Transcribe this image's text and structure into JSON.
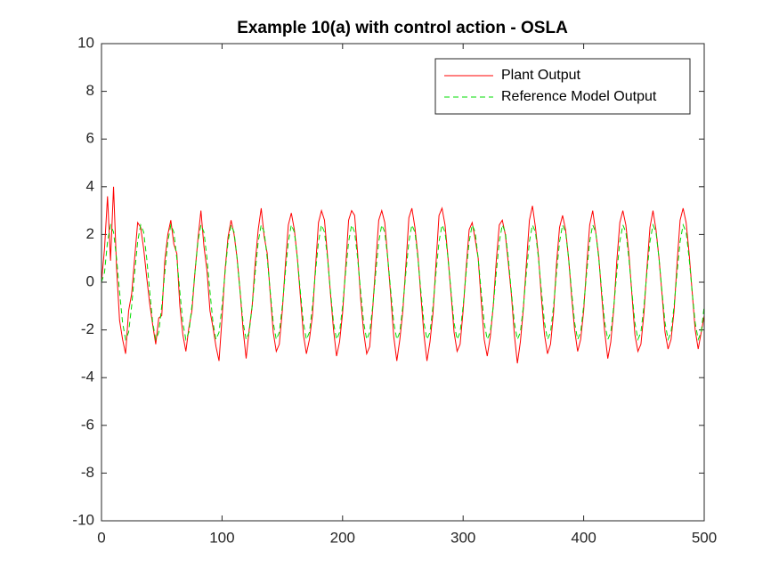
{
  "chart_data": {
    "type": "line",
    "title": "Example 10(a) with control action - OSLA",
    "x": [
      0,
      2.5,
      5,
      7.5,
      10,
      12.5,
      15,
      17.5,
      20,
      22.5,
      25,
      27.5,
      30,
      32.5,
      35,
      37.5,
      40,
      42.5,
      45,
      47.5,
      50,
      52.5,
      55,
      57.5,
      60,
      62.5,
      65,
      67.5,
      70,
      72.5,
      75,
      77.5,
      80,
      82.5,
      85,
      87.5,
      90,
      92.5,
      95,
      97.5,
      100,
      102.5,
      105,
      107.5,
      110,
      112.5,
      115,
      117.5,
      120,
      122.5,
      125,
      127.5,
      130,
      132.5,
      135,
      137.5,
      140,
      142.5,
      145,
      147.5,
      150,
      152.5,
      155,
      157.5,
      160,
      162.5,
      165,
      167.5,
      170,
      172.5,
      175,
      177.5,
      180,
      182.5,
      185,
      187.5,
      190,
      192.5,
      195,
      197.5,
      200,
      202.5,
      205,
      207.5,
      210,
      212.5,
      215,
      217.5,
      220,
      222.5,
      225,
      227.5,
      230,
      232.5,
      235,
      237.5,
      240,
      242.5,
      245,
      247.5,
      250,
      252.5,
      255,
      257.5,
      260,
      262.5,
      265,
      267.5,
      270,
      272.5,
      275,
      277.5,
      280,
      282.5,
      285,
      287.5,
      290,
      292.5,
      295,
      297.5,
      300,
      302.5,
      305,
      307.5,
      310,
      312.5,
      315,
      317.5,
      320,
      322.5,
      325,
      327.5,
      330,
      332.5,
      335,
      337.5,
      340,
      342.5,
      345,
      347.5,
      350,
      352.5,
      355,
      357.5,
      360,
      362.5,
      365,
      367.5,
      370,
      372.5,
      375,
      377.5,
      380,
      382.5,
      385,
      387.5,
      390,
      392.5,
      395,
      397.5,
      400,
      402.5,
      405,
      407.5,
      410,
      412.5,
      415,
      417.5,
      420,
      422.5,
      425,
      427.5,
      430,
      432.5,
      435,
      437.5,
      440,
      442.5,
      445,
      447.5,
      450,
      452.5,
      455,
      457.5,
      460,
      462.5,
      465,
      467.5,
      470,
      472.5,
      475,
      477.5,
      480,
      482.5,
      485,
      487.5,
      490,
      492.5,
      495,
      497.5,
      500
    ],
    "series": [
      {
        "name": "Plant Output",
        "color": "#ff0000",
        "line_style": "solid",
        "values": [
          0,
          1.4,
          3.6,
          0.9,
          4.0,
          0.6,
          -1.6,
          -2.4,
          -3.0,
          -1.2,
          -0.5,
          1.0,
          2.5,
          2.3,
          1.4,
          0.2,
          -0.9,
          -1.8,
          -2.6,
          -1.5,
          -1.4,
          0.9,
          2.0,
          2.6,
          1.6,
          1.2,
          -1.0,
          -2.2,
          -2.9,
          -1.9,
          -1.2,
          0.4,
          1.8,
          3.0,
          1.5,
          0.5,
          -1.2,
          -1.9,
          -2.7,
          -3.3,
          -1.5,
          0.5,
          1.9,
          2.6,
          2.0,
          1.0,
          -0.4,
          -2.0,
          -3.2,
          -2.0,
          -1.0,
          0.8,
          2.2,
          3.1,
          1.9,
          1.2,
          -0.5,
          -2.1,
          -2.9,
          -2.6,
          -1.2,
          0.7,
          2.4,
          2.9,
          2.2,
          1.0,
          -0.6,
          -2.2,
          -3.0,
          -2.4,
          -1.4,
          0.6,
          2.5,
          3.0,
          2.6,
          1.1,
          -0.5,
          -2.0,
          -3.1,
          -2.5,
          -1.3,
          0.6,
          2.6,
          3.0,
          2.8,
          1.2,
          -0.7,
          -2.1,
          -3.0,
          -2.7,
          -1.1,
          0.8,
          2.6,
          3.0,
          2.5,
          1.0,
          -0.6,
          -2.3,
          -3.3,
          -2.4,
          -1.2,
          0.7,
          2.7,
          3.1,
          2.3,
          1.1,
          -0.6,
          -2.2,
          -3.3,
          -2.5,
          -1.3,
          0.8,
          2.8,
          3.1,
          2.4,
          1.0,
          -0.5,
          -2.1,
          -2.9,
          -2.6,
          -1.2,
          0.6,
          2.2,
          2.5,
          1.8,
          1.0,
          -0.8,
          -2.4,
          -3.1,
          -2.3,
          -1.0,
          0.9,
          2.4,
          2.6,
          2.0,
          0.8,
          -0.5,
          -2.2,
          -3.4,
          -2.5,
          -1.1,
          0.8,
          2.6,
          3.2,
          2.3,
          1.1,
          -0.7,
          -2.2,
          -3.0,
          -2.6,
          -1.3,
          0.8,
          2.3,
          2.8,
          2.2,
          1.0,
          -0.6,
          -2.0,
          -2.9,
          -2.4,
          -1.2,
          0.7,
          2.4,
          3.0,
          2.1,
          1.1,
          -0.6,
          -2.1,
          -3.2,
          -2.5,
          -1.1,
          0.9,
          2.5,
          3.0,
          2.4,
          1.2,
          -0.5,
          -2.2,
          -2.9,
          -2.6,
          -1.3,
          0.6,
          2.3,
          3.0,
          2.2,
          1.0,
          -0.5,
          -2.1,
          -2.8,
          -2.4,
          -1.2,
          0.8,
          2.6,
          3.1,
          2.5,
          1.2,
          -0.4,
          -2.0,
          -2.8,
          -2.1,
          -1.4
        ]
      },
      {
        "name": "Reference Model Output",
        "color": "#00dd00",
        "line_style": "dashed",
        "values": [
          0,
          0.4,
          1.7,
          2.4,
          2.1,
          1.0,
          -0.4,
          -1.7,
          -2.4,
          -2.1,
          -1.0,
          0.4,
          1.7,
          2.4,
          2.1,
          1.0,
          -0.4,
          -1.7,
          -2.4,
          -2.1,
          -1.0,
          0.4,
          1.7,
          2.4,
          2.1,
          1.0,
          -0.4,
          -1.7,
          -2.4,
          -2.1,
          -1.0,
          0.4,
          1.7,
          2.4,
          2.1,
          1.0,
          -0.4,
          -1.7,
          -2.4,
          -2.1,
          -1.0,
          0.4,
          1.7,
          2.4,
          2.1,
          1.0,
          -0.4,
          -1.7,
          -2.4,
          -2.1,
          -1.0,
          0.4,
          1.7,
          2.4,
          2.1,
          1.0,
          -0.4,
          -1.7,
          -2.4,
          -2.1,
          -1.0,
          0.4,
          1.7,
          2.4,
          2.1,
          1.0,
          -0.4,
          -1.7,
          -2.4,
          -2.1,
          -1.0,
          0.4,
          1.7,
          2.4,
          2.1,
          1.0,
          -0.4,
          -1.7,
          -2.4,
          -2.1,
          -1.0,
          0.4,
          1.7,
          2.4,
          2.1,
          1.0,
          -0.4,
          -1.7,
          -2.4,
          -2.1,
          -1.0,
          0.4,
          1.7,
          2.4,
          2.1,
          1.0,
          -0.4,
          -1.7,
          -2.4,
          -2.1,
          -1.0,
          0.4,
          1.7,
          2.4,
          2.1,
          1.0,
          -0.4,
          -1.7,
          -2.4,
          -2.1,
          -1.0,
          0.4,
          1.7,
          2.4,
          2.1,
          1.0,
          -0.4,
          -1.7,
          -2.4,
          -2.1,
          -1.0,
          0.4,
          1.7,
          2.4,
          2.1,
          1.0,
          -0.4,
          -1.7,
          -2.4,
          -2.1,
          -1.0,
          0.4,
          1.7,
          2.4,
          2.1,
          1.0,
          -0.4,
          -1.7,
          -2.4,
          -2.1,
          -1.0,
          0.4,
          1.7,
          2.4,
          2.1,
          1.0,
          -0.4,
          -1.7,
          -2.4,
          -2.1,
          -1.0,
          0.4,
          1.7,
          2.4,
          2.1,
          1.0,
          -0.4,
          -1.7,
          -2.4,
          -2.1,
          -1.0,
          0.4,
          1.7,
          2.4,
          2.1,
          1.0,
          -0.4,
          -1.7,
          -2.4,
          -2.1,
          -1.0,
          0.4,
          1.7,
          2.4,
          2.1,
          1.0,
          -0.4,
          -1.7,
          -2.4,
          -2.1,
          -1.0,
          0.4,
          1.7,
          2.4,
          2.1,
          1.0,
          -0.4,
          -1.7,
          -2.4,
          -2.1,
          -1.0,
          0.4,
          1.7,
          2.4,
          2.1,
          1.0,
          -0.4,
          -1.7,
          -2.4,
          -2.1,
          -1.0
        ]
      }
    ],
    "xlim": [
      0,
      500
    ],
    "xticks": [
      0,
      100,
      200,
      300,
      400,
      500
    ],
    "ylim": [
      -10,
      10
    ],
    "yticks": [
      -10,
      -8,
      -6,
      -4,
      -2,
      0,
      2,
      4,
      6,
      8,
      10
    ],
    "grid": false,
    "legend": "northeast"
  }
}
